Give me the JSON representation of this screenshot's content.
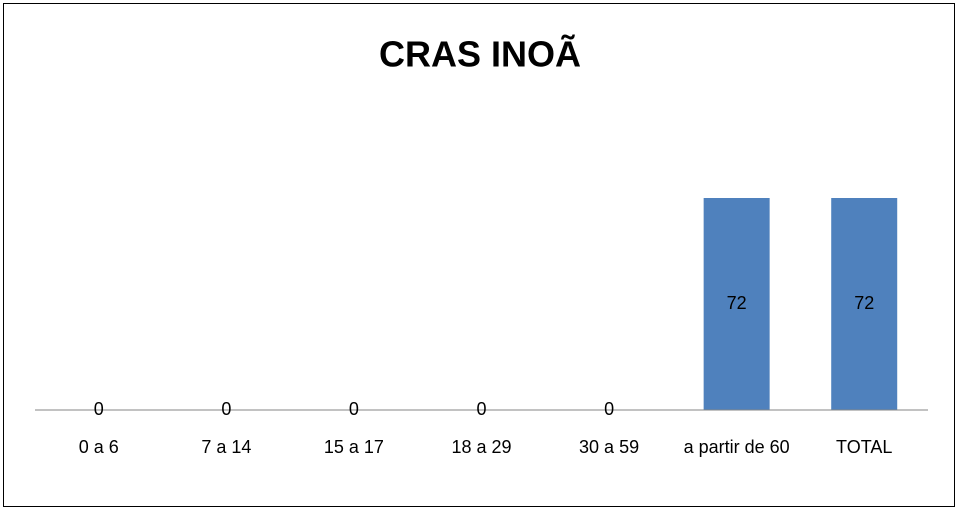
{
  "chart_data": {
    "type": "bar",
    "title": "CRAS INOÃ",
    "categories": [
      "0 a 6",
      "7 a 14",
      "15 a 17",
      "18 a 29",
      "30 a 59",
      "a partir de 60",
      "TOTAL"
    ],
    "values": [
      0,
      0,
      0,
      0,
      0,
      72,
      72
    ],
    "color": "#4f81bd"
  }
}
